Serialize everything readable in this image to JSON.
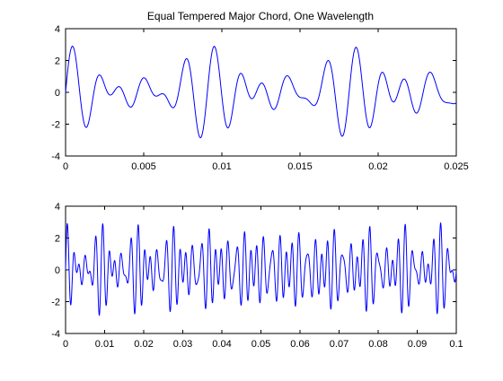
{
  "figure": {
    "background": "#ffffff",
    "title": "Equal Tempered Major Chord, One Wavelength"
  },
  "chart_data": [
    {
      "type": "line",
      "title": "Equal Tempered Major Chord, One Wavelength",
      "xlabel": "",
      "ylabel": "",
      "xlim": [
        0,
        0.025
      ],
      "ylim": [
        -4,
        4
      ],
      "xticks": [
        0,
        0.005,
        0.01,
        0.015,
        0.02,
        0.025
      ],
      "xtick_labels": [
        "0",
        "0.005",
        "0.01",
        "0.015",
        "0.02",
        "0.025"
      ],
      "yticks": [
        -4,
        -2,
        0,
        2,
        4
      ],
      "ytick_labels": [
        "-4",
        "-2",
        "0",
        "2",
        "4"
      ],
      "grid": false,
      "color": "#0000ff",
      "series": [
        {
          "signal": {
            "components": [
              {
                "frequency": 440.0,
                "amplitude": 1
              },
              {
                "frequency": 554.365,
                "amplitude": 1
              },
              {
                "frequency": 659.255,
                "amplitude": 1
              }
            ],
            "x_start": 0,
            "x_end": 0.025,
            "samples": 400
          }
        }
      ]
    },
    {
      "type": "line",
      "title": "",
      "xlabel": "",
      "ylabel": "",
      "xlim": [
        0,
        0.1
      ],
      "ylim": [
        -4,
        4
      ],
      "xticks": [
        0,
        0.01,
        0.02,
        0.03,
        0.04,
        0.05,
        0.06,
        0.07,
        0.08,
        0.09,
        0.1
      ],
      "xtick_labels": [
        "0",
        "0.01",
        "0.02",
        "0.03",
        "0.04",
        "0.05",
        "0.06",
        "0.07",
        "0.08",
        "0.09",
        "0.1"
      ],
      "yticks": [
        -4,
        -2,
        0,
        2,
        4
      ],
      "ytick_labels": [
        "-4",
        "-2",
        "0",
        "2",
        "4"
      ],
      "grid": false,
      "color": "#0000ff",
      "series": [
        {
          "signal": {
            "components": [
              {
                "frequency": 440.0,
                "amplitude": 1
              },
              {
                "frequency": 554.365,
                "amplitude": 1
              },
              {
                "frequency": 659.255,
                "amplitude": 1
              }
            ],
            "x_start": 0,
            "x_end": 0.1,
            "samples": 1600
          }
        }
      ]
    }
  ]
}
